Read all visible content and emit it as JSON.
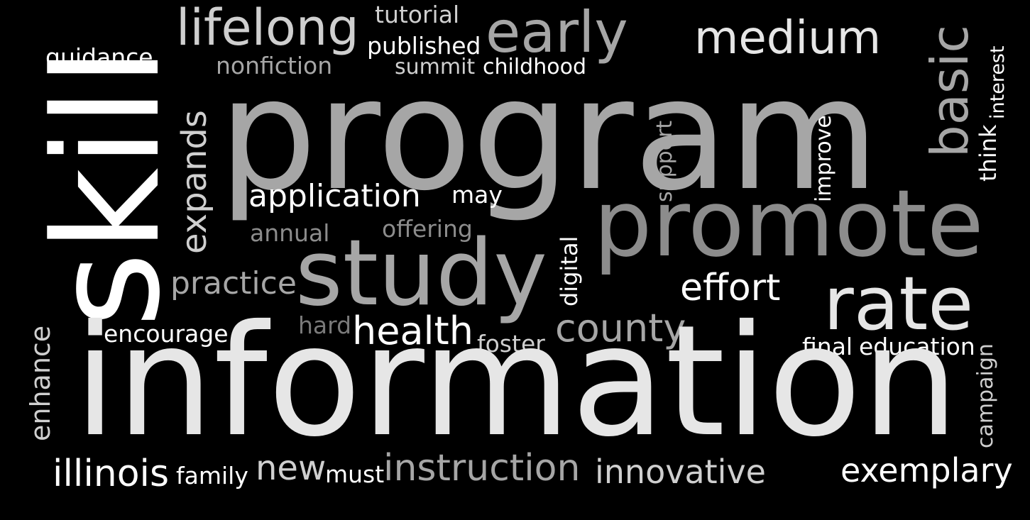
{
  "palette": {
    "background": "#000000",
    "white": "#ffffff",
    "light": "#e6e6e6",
    "silver": "#cfcfcf",
    "mid": "#a6a6a6",
    "grey": "#8c8c8c",
    "dim": "#7a7a7a"
  },
  "words": {
    "skill": "skill",
    "guidance": "guidance",
    "lifelong": "lifelong",
    "tutorial": "tutorial",
    "published": "published",
    "early": "early",
    "medium": "medium",
    "nonfiction": "nonfiction",
    "summit": "summit",
    "childhood": "childhood",
    "basic": "basic",
    "interest": "interest",
    "think": "think",
    "program": "program",
    "expands": "expands",
    "support": "support",
    "improve": "improve",
    "application": "application",
    "may": "may",
    "promote": "promote",
    "annual": "annual",
    "offering": "offering",
    "digital": "digital",
    "study": "study",
    "practice": "practice",
    "effort": "effort",
    "rate": "rate",
    "enhance": "enhance",
    "encourage": "encourage",
    "hard": "hard",
    "health": "health",
    "foster": "foster",
    "county": "county",
    "final": "final",
    "education": "education",
    "campaign": "campaign",
    "information": "information",
    "illinois": "illinois",
    "family": "family",
    "new": "new",
    "must": "must",
    "instruction": "instruction",
    "innovative": "innovative",
    "exemplary": "exemplary"
  }
}
